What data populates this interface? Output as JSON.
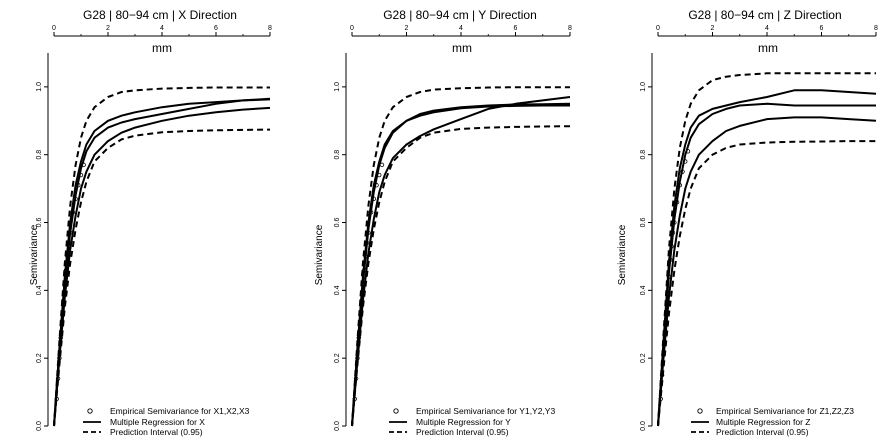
{
  "figure": {
    "y_axis_label": "Semivariance",
    "x_axis_label": "mm"
  },
  "chart_data": [
    {
      "type": "line",
      "title": "G28 | 80−94 cm | X Direction",
      "xlabel": "mm",
      "ylabel": "Semivariance",
      "xlim": [
        0,
        8
      ],
      "ylim": [
        0,
        1.15
      ],
      "x_ticks": [
        "0",
        "2",
        "4",
        "6",
        "8"
      ],
      "y_ticks": [
        "0.0",
        "0.2",
        "0.4",
        "0.6",
        "0.8",
        "1.0"
      ],
      "grid": false,
      "legend_position": "bottom-right",
      "legend": [
        {
          "label": "Empirical Semivariance for X1,X2,X3",
          "style": "points"
        },
        {
          "label": "Multiple Regression for X",
          "style": "solid"
        },
        {
          "label": "Prediction Interval (0.95)",
          "style": "dashed"
        }
      ],
      "series": [
        {
          "style": "solid",
          "x": [
            0,
            0.2,
            0.4,
            0.6,
            0.8,
            1.0,
            1.2,
            1.5,
            2.0,
            2.5,
            3.0,
            4.0,
            5.0,
            6.0,
            7.0,
            8.0
          ],
          "values": [
            0,
            0.23,
            0.44,
            0.6,
            0.71,
            0.78,
            0.83,
            0.87,
            0.9,
            0.915,
            0.925,
            0.94,
            0.95,
            0.955,
            0.96,
            0.965
          ]
        },
        {
          "style": "solid",
          "x": [
            0,
            0.2,
            0.4,
            0.6,
            0.8,
            1.0,
            1.2,
            1.5,
            2.0,
            2.5,
            3.0,
            4.0,
            5.0,
            6.0,
            7.0,
            8.0
          ],
          "values": [
            0,
            0.22,
            0.42,
            0.57,
            0.68,
            0.76,
            0.81,
            0.85,
            0.88,
            0.895,
            0.905,
            0.92,
            0.935,
            0.95,
            0.96,
            0.963
          ]
        },
        {
          "style": "solid",
          "x": [
            0,
            0.2,
            0.4,
            0.6,
            0.8,
            1.0,
            1.2,
            1.5,
            2.0,
            2.5,
            3.0,
            4.0,
            5.0,
            6.0,
            7.0,
            8.0
          ],
          "values": [
            0,
            0.2,
            0.38,
            0.52,
            0.62,
            0.7,
            0.75,
            0.8,
            0.84,
            0.865,
            0.88,
            0.9,
            0.915,
            0.925,
            0.933,
            0.938
          ]
        },
        {
          "style": "dashed",
          "x": [
            0,
            0.2,
            0.4,
            0.6,
            0.8,
            1.0,
            1.2,
            1.5,
            2.0,
            2.5,
            3.0,
            4.0,
            5.0,
            6.0,
            7.0,
            8.0
          ],
          "values": [
            0,
            0.25,
            0.48,
            0.65,
            0.77,
            0.85,
            0.9,
            0.94,
            0.97,
            0.985,
            0.99,
            0.995,
            0.997,
            0.998,
            0.998,
            0.998
          ]
        },
        {
          "style": "dashed",
          "x": [
            0,
            0.2,
            0.4,
            0.6,
            0.8,
            1.0,
            1.2,
            1.5,
            2.0,
            2.5,
            3.0,
            4.0,
            5.0,
            6.0,
            7.0,
            8.0
          ],
          "values": [
            0,
            0.18,
            0.35,
            0.48,
            0.58,
            0.66,
            0.72,
            0.78,
            0.82,
            0.845,
            0.856,
            0.866,
            0.87,
            0.872,
            0.873,
            0.874
          ]
        }
      ],
      "empirical_points": {
        "x": [
          0.1,
          0.15,
          0.2,
          0.25,
          0.3,
          0.35,
          0.4,
          0.45,
          0.5,
          0.55,
          0.6,
          0.7,
          0.8,
          0.9,
          1.0,
          1.1
        ],
        "values": [
          0.08,
          0.14,
          0.2,
          0.26,
          0.31,
          0.37,
          0.42,
          0.46,
          0.5,
          0.54,
          0.57,
          0.63,
          0.67,
          0.71,
          0.74,
          0.77
        ]
      }
    },
    {
      "type": "line",
      "title": "G28 | 80−94 cm | Y Direction",
      "xlabel": "mm",
      "ylabel": "Semivariance",
      "xlim": [
        0,
        8
      ],
      "ylim": [
        0,
        1.15
      ],
      "x_ticks": [
        "0",
        "2",
        "4",
        "6",
        "8"
      ],
      "y_ticks": [
        "0.0",
        "0.2",
        "0.4",
        "0.6",
        "0.8",
        "1.0"
      ],
      "grid": false,
      "legend_position": "bottom-right",
      "legend": [
        {
          "label": "Empirical Semivariance for Y1,Y2,Y3",
          "style": "points"
        },
        {
          "label": "Multiple Regression for Y",
          "style": "solid"
        },
        {
          "label": "Prediction Interval (0.95)",
          "style": "dashed"
        }
      ],
      "series": [
        {
          "style": "solid",
          "x": [
            0,
            0.2,
            0.4,
            0.6,
            0.8,
            1.0,
            1.2,
            1.5,
            2.0,
            2.5,
            3.0,
            4.0,
            5.0,
            6.0,
            7.0,
            8.0
          ],
          "values": [
            0,
            0.23,
            0.44,
            0.6,
            0.71,
            0.78,
            0.83,
            0.87,
            0.9,
            0.92,
            0.93,
            0.94,
            0.945,
            0.948,
            0.949,
            0.95
          ]
        },
        {
          "style": "solid",
          "x": [
            0,
            0.2,
            0.4,
            0.6,
            0.8,
            1.0,
            1.2,
            1.5,
            2.0,
            2.5,
            3.0,
            4.0,
            5.0,
            6.0,
            7.0,
            8.0
          ],
          "values": [
            0,
            0.22,
            0.42,
            0.58,
            0.69,
            0.77,
            0.82,
            0.865,
            0.9,
            0.915,
            0.925,
            0.937,
            0.942,
            0.944,
            0.945,
            0.945
          ]
        },
        {
          "style": "solid",
          "x": [
            0,
            0.2,
            0.4,
            0.6,
            0.8,
            1.0,
            1.2,
            1.5,
            2.0,
            2.5,
            3.0,
            4.0,
            5.0,
            6.0,
            7.0,
            8.0
          ],
          "values": [
            0,
            0.19,
            0.37,
            0.51,
            0.61,
            0.69,
            0.74,
            0.79,
            0.83,
            0.855,
            0.875,
            0.905,
            0.935,
            0.95,
            0.96,
            0.97
          ]
        },
        {
          "style": "dashed",
          "x": [
            0,
            0.2,
            0.4,
            0.6,
            0.8,
            1.0,
            1.2,
            1.5,
            2.0,
            2.5,
            3.0,
            4.0,
            5.0,
            6.0,
            7.0,
            8.0
          ],
          "values": [
            0,
            0.25,
            0.48,
            0.65,
            0.77,
            0.85,
            0.9,
            0.94,
            0.97,
            0.985,
            0.992,
            0.996,
            0.998,
            0.999,
            0.999,
            0.999
          ]
        },
        {
          "style": "dashed",
          "x": [
            0,
            0.2,
            0.4,
            0.6,
            0.8,
            1.0,
            1.2,
            1.5,
            2.0,
            2.5,
            3.0,
            4.0,
            5.0,
            6.0,
            7.0,
            8.0
          ],
          "values": [
            0,
            0.18,
            0.35,
            0.48,
            0.58,
            0.66,
            0.72,
            0.78,
            0.82,
            0.85,
            0.865,
            0.876,
            0.88,
            0.882,
            0.883,
            0.884
          ]
        }
      ],
      "empirical_points": {
        "x": [
          0.1,
          0.15,
          0.2,
          0.25,
          0.3,
          0.35,
          0.4,
          0.45,
          0.5,
          0.55,
          0.6,
          0.7,
          0.8,
          0.9,
          1.0,
          1.1
        ],
        "values": [
          0.08,
          0.14,
          0.2,
          0.26,
          0.31,
          0.37,
          0.42,
          0.46,
          0.5,
          0.54,
          0.57,
          0.63,
          0.67,
          0.71,
          0.74,
          0.77
        ]
      }
    },
    {
      "type": "line",
      "title": "G28 | 80−94 cm | Z Direction",
      "xlabel": "mm",
      "ylabel": "Semivariance",
      "xlim": [
        0,
        8
      ],
      "ylim": [
        0,
        1.15
      ],
      "x_ticks": [
        "0",
        "2",
        "4",
        "6",
        "8"
      ],
      "y_ticks": [
        "0.0",
        "0.2",
        "0.4",
        "0.6",
        "0.8",
        "1.0"
      ],
      "grid": false,
      "legend_position": "bottom-right",
      "legend": [
        {
          "label": "Empirical Semivariance for Z1,Z2,Z3",
          "style": "points"
        },
        {
          "label": "Multiple Regression for Z",
          "style": "solid"
        },
        {
          "label": "Prediction Interval (0.95)",
          "style": "dashed"
        }
      ],
      "series": [
        {
          "style": "solid",
          "x": [
            0,
            0.2,
            0.4,
            0.6,
            0.8,
            1.0,
            1.2,
            1.5,
            2.0,
            2.5,
            3.0,
            4.0,
            5.0,
            6.0,
            7.0,
            8.0
          ],
          "values": [
            0,
            0.25,
            0.48,
            0.65,
            0.76,
            0.83,
            0.88,
            0.915,
            0.935,
            0.945,
            0.955,
            0.97,
            0.99,
            0.99,
            0.985,
            0.98
          ]
        },
        {
          "style": "solid",
          "x": [
            0,
            0.2,
            0.4,
            0.6,
            0.8,
            1.0,
            1.2,
            1.5,
            2.0,
            2.5,
            3.0,
            4.0,
            5.0,
            6.0,
            7.0,
            8.0
          ],
          "values": [
            0,
            0.23,
            0.45,
            0.61,
            0.72,
            0.8,
            0.85,
            0.89,
            0.92,
            0.935,
            0.945,
            0.95,
            0.945,
            0.945,
            0.945,
            0.945
          ]
        },
        {
          "style": "solid",
          "x": [
            0,
            0.2,
            0.4,
            0.6,
            0.8,
            1.0,
            1.2,
            1.5,
            2.0,
            2.5,
            3.0,
            4.0,
            5.0,
            6.0,
            7.0,
            8.0
          ],
          "values": [
            0,
            0.2,
            0.38,
            0.52,
            0.62,
            0.7,
            0.75,
            0.8,
            0.84,
            0.87,
            0.885,
            0.905,
            0.91,
            0.91,
            0.905,
            0.9
          ]
        },
        {
          "style": "dashed",
          "x": [
            0,
            0.2,
            0.4,
            0.6,
            0.8,
            1.0,
            1.2,
            1.5,
            2.0,
            2.5,
            3.0,
            4.0,
            5.0,
            6.0,
            7.0,
            8.0
          ],
          "values": [
            0,
            0.27,
            0.52,
            0.7,
            0.82,
            0.9,
            0.95,
            0.99,
            1.02,
            1.03,
            1.035,
            1.04,
            1.04,
            1.04,
            1.04,
            1.04
          ]
        },
        {
          "style": "dashed",
          "x": [
            0,
            0.2,
            0.4,
            0.6,
            0.8,
            1.0,
            1.2,
            1.5,
            2.0,
            2.5,
            3.0,
            4.0,
            5.0,
            6.0,
            7.0,
            8.0
          ],
          "values": [
            0,
            0.17,
            0.33,
            0.46,
            0.56,
            0.64,
            0.7,
            0.76,
            0.8,
            0.82,
            0.83,
            0.836,
            0.838,
            0.839,
            0.84,
            0.84
          ]
        }
      ],
      "empirical_points": {
        "x": [
          0.1,
          0.15,
          0.2,
          0.25,
          0.3,
          0.35,
          0.4,
          0.45,
          0.5,
          0.55,
          0.6,
          0.7,
          0.8,
          0.9,
          1.0,
          1.1
        ],
        "values": [
          0.08,
          0.15,
          0.21,
          0.27,
          0.33,
          0.39,
          0.44,
          0.49,
          0.53,
          0.57,
          0.6,
          0.66,
          0.71,
          0.75,
          0.78,
          0.81
        ]
      }
    }
  ]
}
